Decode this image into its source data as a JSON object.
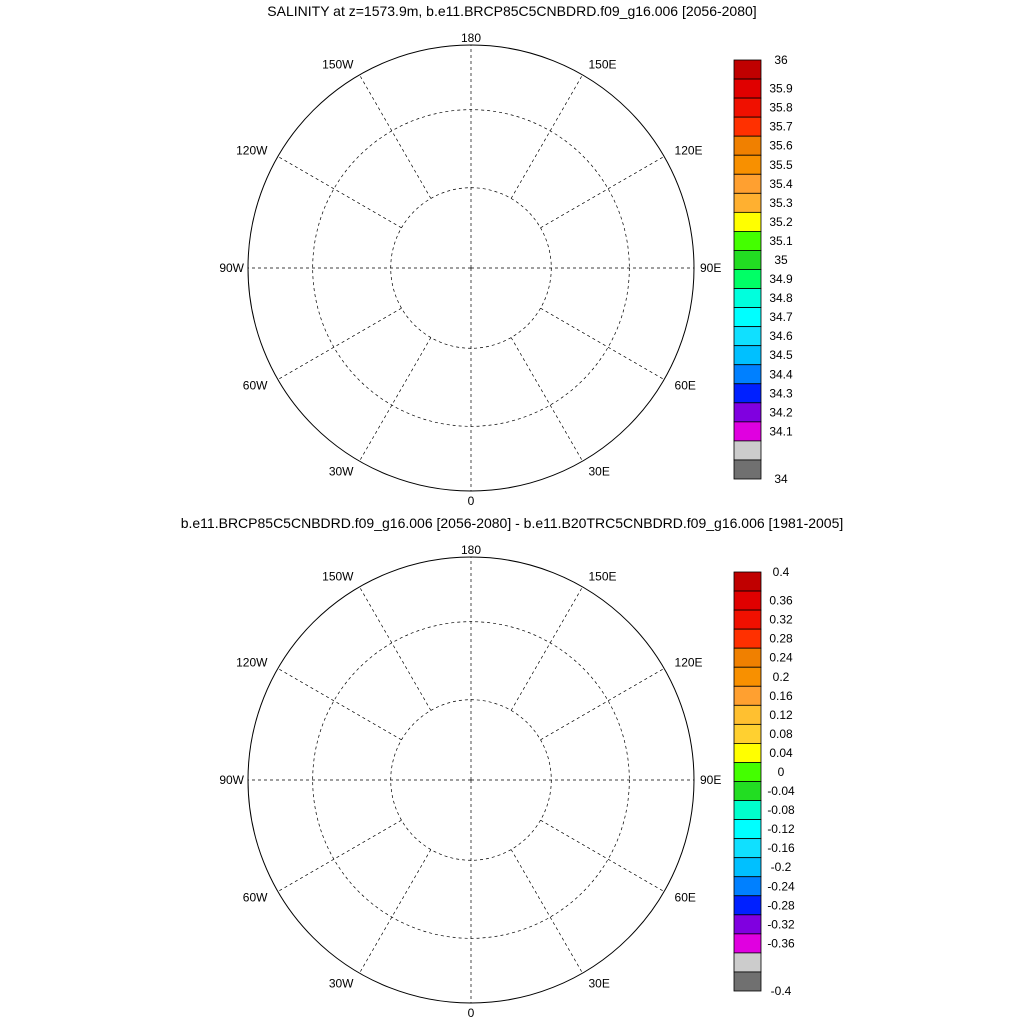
{
  "panels": [
    {
      "title": "SALINITY at z=1573.9m, b.e11.BRCP85C5CNBDRD.f09_g16.006 [2056-2080]",
      "lon_labels": {
        "top": "180",
        "bottom": "0",
        "left": "90W",
        "right": "90E",
        "ul1": "150W",
        "ul2": "120W",
        "ll1": "60W",
        "ll2": "30W",
        "ur1": "150E",
        "ur2": "120E",
        "lr1": "60E",
        "lr2": "30E"
      },
      "colorbar": {
        "labels": [
          "36",
          "35.9",
          "35.8",
          "35.7",
          "35.6",
          "35.5",
          "35.4",
          "35.3",
          "35.2",
          "35.1",
          "35",
          "34.9",
          "34.8",
          "34.7",
          "34.6",
          "34.5",
          "34.4",
          "34.3",
          "34.2",
          "34.1",
          "34"
        ],
        "colors": [
          "#c00000",
          "#e00000",
          "#f01000",
          "#ff3000",
          "#f08000",
          "#f89000",
          "#ffa030",
          "#ffb030",
          "#ffff00",
          "#44ff00",
          "#22dd22",
          "#00ff66",
          "#00ffdd",
          "#00ffff",
          "#10e0ff",
          "#00c0ff",
          "#0080ff",
          "#0020ff",
          "#8000e0",
          "#e000e0",
          "#cccccc",
          "#707070"
        ]
      }
    },
    {
      "title": "b.e11.BRCP85C5CNBDRD.f09_g16.006 [2056-2080] - b.e11.B20TRC5CNBDRD.f09_g16.006 [1981-2005]",
      "lon_labels": {
        "top": "180",
        "bottom": "0",
        "left": "90W",
        "right": "90E",
        "ul1": "150W",
        "ul2": "120W",
        "ll1": "60W",
        "ll2": "30W",
        "ur1": "150E",
        "ur2": "120E",
        "lr1": "60E",
        "lr2": "30E"
      },
      "colorbar": {
        "labels": [
          "0.4",
          "0.36",
          "0.32",
          "0.28",
          "0.24",
          "0.2",
          "0.16",
          "0.12",
          "0.08",
          "0.04",
          "0",
          "-0.04",
          "-0.08",
          "-0.12",
          "-0.16",
          "-0.2",
          "-0.24",
          "-0.28",
          "-0.32",
          "-0.36",
          "-0.4"
        ],
        "colors": [
          "#c00000",
          "#e00000",
          "#f01000",
          "#ff3000",
          "#f08000",
          "#f89000",
          "#ffa030",
          "#ffc030",
          "#ffd030",
          "#ffff00",
          "#44ff00",
          "#22dd22",
          "#00ffcc",
          "#00ffff",
          "#10e0ff",
          "#00c0ff",
          "#0080ff",
          "#0020ff",
          "#8000e0",
          "#e000e0",
          "#cccccc",
          "#707070"
        ]
      }
    }
  ]
}
